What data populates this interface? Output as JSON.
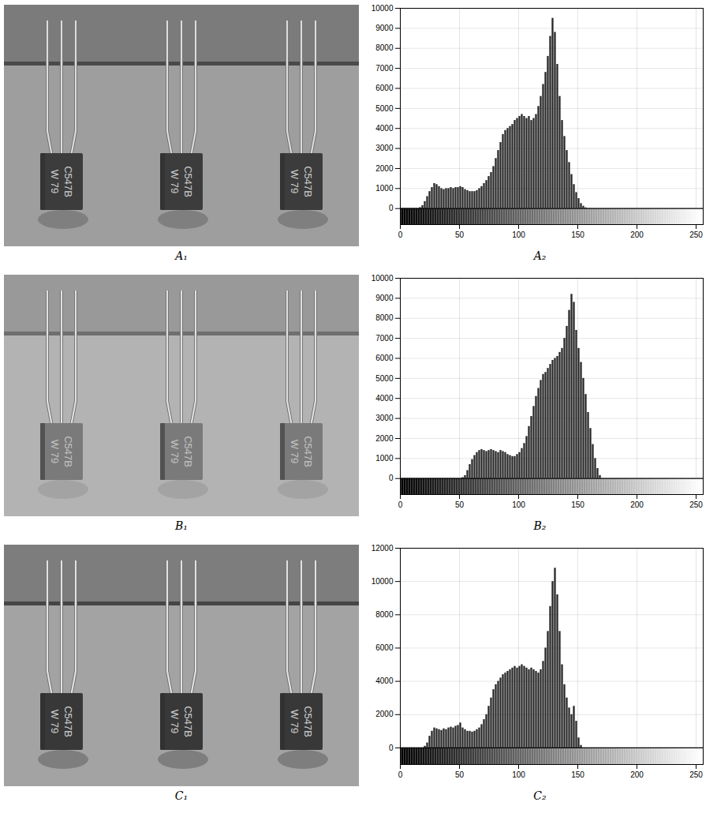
{
  "images": [
    {
      "caption": "A₁",
      "transistors": [
        [
          "C547B",
          "W 79"
        ],
        [
          "C547B",
          "W 79"
        ],
        [
          "C547B",
          "W 79"
        ]
      ]
    },
    {
      "caption": "B₁",
      "transistors": [
        [
          "C547B",
          "W 79"
        ],
        [
          "C547B",
          "W 79"
        ],
        [
          "C547B",
          "W 79"
        ]
      ]
    },
    {
      "caption": "C₁",
      "transistors": [
        [
          "C547B",
          "W 79"
        ],
        [
          "C547B",
          "W 79"
        ],
        [
          "C547B",
          "W 79"
        ]
      ]
    }
  ],
  "chart_data": [
    {
      "type": "histogram",
      "caption": "A₂",
      "bins": [
        16,
        18,
        20,
        22,
        24,
        26,
        28,
        30,
        32,
        34,
        36,
        38,
        40,
        42,
        44,
        46,
        48,
        50,
        52,
        54,
        56,
        58,
        60,
        62,
        64,
        66,
        68,
        70,
        72,
        74,
        76,
        78,
        80,
        82,
        84,
        86,
        88,
        90,
        92,
        94,
        96,
        98,
        100,
        102,
        104,
        106,
        108,
        110,
        112,
        114,
        116,
        118,
        120,
        122,
        124,
        126,
        128,
        130,
        132,
        134,
        136,
        138,
        140,
        142,
        144,
        146,
        148,
        150,
        152,
        154,
        156,
        158
      ],
      "values": [
        50,
        150,
        350,
        600,
        850,
        1050,
        1250,
        1200,
        1100,
        1000,
        950,
        1000,
        1000,
        1050,
        1000,
        1050,
        1050,
        1100,
        1050,
        950,
        900,
        850,
        850,
        850,
        900,
        1000,
        1100,
        1250,
        1400,
        1600,
        1800,
        2100,
        2500,
        2900,
        3300,
        3700,
        3900,
        4000,
        4100,
        4200,
        4400,
        4500,
        4600,
        4700,
        4600,
        4500,
        4600,
        4400,
        4500,
        4700,
        5100,
        5600,
        6200,
        6800,
        7600,
        8600,
        9500,
        8800,
        7200,
        5600,
        4400,
        3600,
        2900,
        2300,
        1700,
        1200,
        800,
        500,
        250,
        120,
        40
      ],
      "color": "#000000",
      "xlim": [
        0,
        256
      ],
      "xticks": [
        0,
        50,
        100,
        150,
        200,
        250
      ],
      "ylim": [
        -800,
        10000
      ],
      "yticks": [
        0,
        1000,
        2000,
        3000,
        4000,
        5000,
        6000,
        7000,
        8000,
        9000,
        10000
      ],
      "grid": true,
      "colorbar": {
        "range": [
          0,
          255
        ],
        "ylim": [
          -800,
          0
        ]
      }
    },
    {
      "type": "histogram",
      "caption": "B₂",
      "bins": [
        52,
        54,
        56,
        58,
        60,
        62,
        64,
        66,
        68,
        70,
        72,
        74,
        76,
        78,
        80,
        82,
        84,
        86,
        88,
        90,
        92,
        94,
        96,
        98,
        100,
        102,
        104,
        106,
        108,
        110,
        112,
        114,
        116,
        118,
        120,
        122,
        124,
        126,
        128,
        130,
        132,
        134,
        136,
        138,
        140,
        142,
        144,
        146,
        148,
        150,
        152,
        154,
        156,
        158,
        160,
        162,
        164,
        166,
        168,
        170
      ],
      "values": [
        50,
        150,
        400,
        700,
        950,
        1150,
        1300,
        1400,
        1450,
        1400,
        1350,
        1400,
        1450,
        1400,
        1350,
        1300,
        1400,
        1350,
        1300,
        1200,
        1150,
        1100,
        1100,
        1200,
        1300,
        1500,
        1750,
        2100,
        2600,
        3100,
        3600,
        4100,
        4500,
        4900,
        5200,
        5300,
        5500,
        5700,
        5900,
        6000,
        6100,
        6300,
        6500,
        7000,
        7600,
        8400,
        9200,
        8800,
        7400,
        6500,
        5800,
        5000,
        4200,
        3300,
        2500,
        1700,
        1000,
        500,
        150
      ],
      "color": "#000000",
      "xlim": [
        0,
        256
      ],
      "xticks": [
        0,
        50,
        100,
        150,
        200,
        250
      ],
      "ylim": [
        -800,
        10000
      ],
      "yticks": [
        0,
        1000,
        2000,
        3000,
        4000,
        5000,
        6000,
        7000,
        8000,
        9000,
        10000
      ],
      "grid": true,
      "colorbar": {
        "range": [
          0,
          255
        ],
        "ylim": [
          -800,
          0
        ]
      }
    },
    {
      "type": "histogram",
      "caption": "C₂",
      "bins": [
        20,
        22,
        24,
        26,
        28,
        30,
        32,
        34,
        36,
        38,
        40,
        42,
        44,
        46,
        48,
        50,
        52,
        54,
        56,
        58,
        60,
        62,
        64,
        66,
        68,
        70,
        72,
        74,
        76,
        78,
        80,
        82,
        84,
        86,
        88,
        90,
        92,
        94,
        96,
        98,
        100,
        102,
        104,
        106,
        108,
        110,
        112,
        114,
        116,
        118,
        120,
        122,
        124,
        126,
        128,
        130,
        132,
        134,
        136,
        138,
        140,
        142,
        144,
        146,
        148,
        150,
        152,
        154
      ],
      "values": [
        100,
        300,
        700,
        1000,
        1200,
        1150,
        1100,
        1050,
        1150,
        1100,
        1200,
        1250,
        1200,
        1300,
        1350,
        1500,
        1200,
        1100,
        1000,
        1000,
        950,
        1000,
        1100,
        1200,
        1400,
        1700,
        2000,
        2500,
        3000,
        3500,
        3800,
        4000,
        4200,
        4400,
        4500,
        4600,
        4700,
        4800,
        4900,
        4800,
        4900,
        5000,
        4900,
        4800,
        4700,
        4800,
        4700,
        4600,
        4500,
        4700,
        5200,
        6000,
        7000,
        8500,
        10000,
        10800,
        9200,
        7000,
        5000,
        3800,
        3000,
        2400,
        2000,
        2500,
        1600,
        600,
        150
      ],
      "color": "#000000",
      "xlim": [
        0,
        256
      ],
      "xticks": [
        0,
        50,
        100,
        150,
        200,
        250
      ],
      "ylim": [
        -1000,
        12000
      ],
      "yticks": [
        0,
        2000,
        4000,
        6000,
        8000,
        10000,
        12000
      ],
      "grid": true,
      "colorbar": {
        "range": [
          0,
          255
        ],
        "ylim": [
          -1000,
          0
        ]
      }
    }
  ]
}
